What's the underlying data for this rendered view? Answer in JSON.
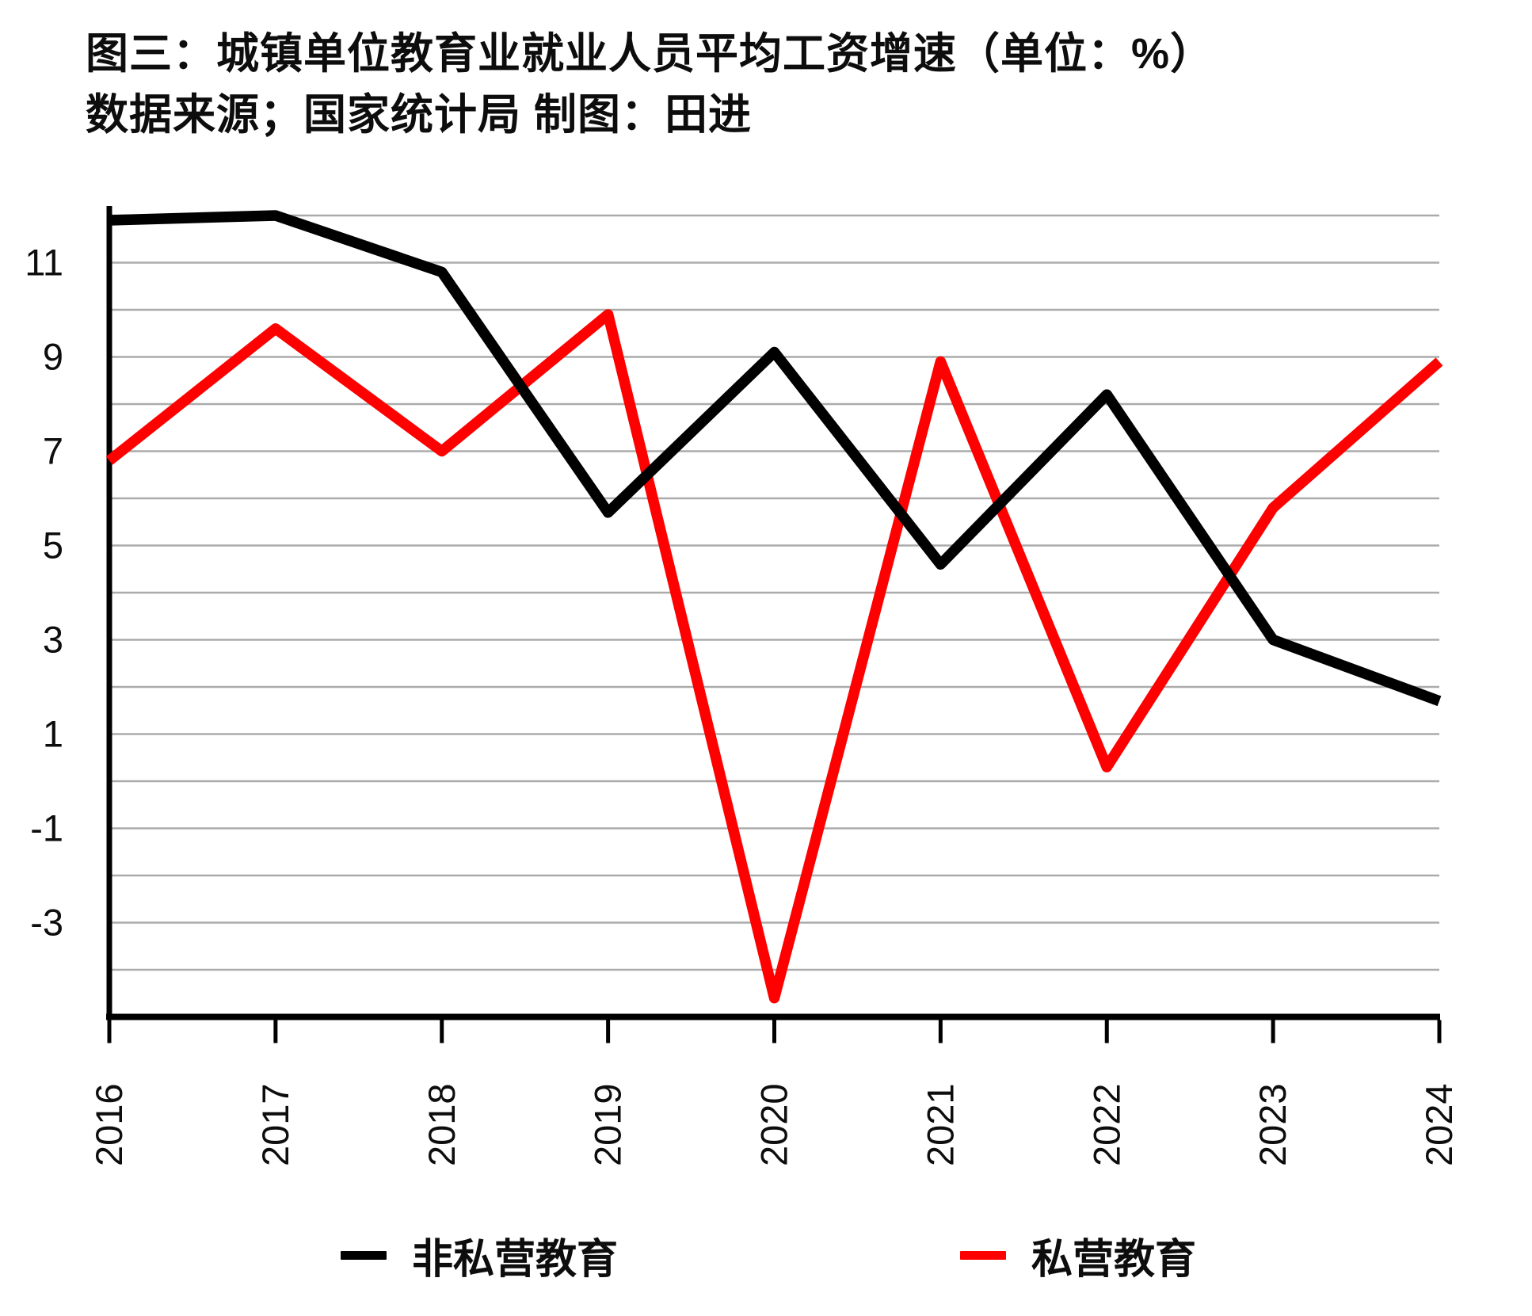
{
  "chart_data": {
    "type": "line",
    "title": "图三：城镇单位教育业就业人员平均工资增速（单位：%）",
    "source_note": "数据来源；国家统计局 制图：田进",
    "x": [
      "2016",
      "2017",
      "2018",
      "2019",
      "2020",
      "2021",
      "2022",
      "2023",
      "2024"
    ],
    "series": [
      {
        "name": "非私营教育",
        "color": "#000000",
        "values": [
          11.9,
          12.0,
          10.8,
          5.7,
          9.1,
          4.6,
          8.2,
          3.0,
          1.7
        ]
      },
      {
        "name": "私营教育",
        "color": "#ff0000",
        "values": [
          6.8,
          9.6,
          7.0,
          9.9,
          -4.6,
          8.9,
          0.3,
          5.8,
          8.9
        ]
      }
    ],
    "ylim": [
      -5,
      12
    ],
    "ytick_labels": [
      11,
      9,
      7,
      5,
      3,
      1,
      -1,
      -3
    ],
    "grid_step": 1,
    "grid_color": "#ababab",
    "axis_color": "#000000",
    "legend_position": "bottom"
  }
}
